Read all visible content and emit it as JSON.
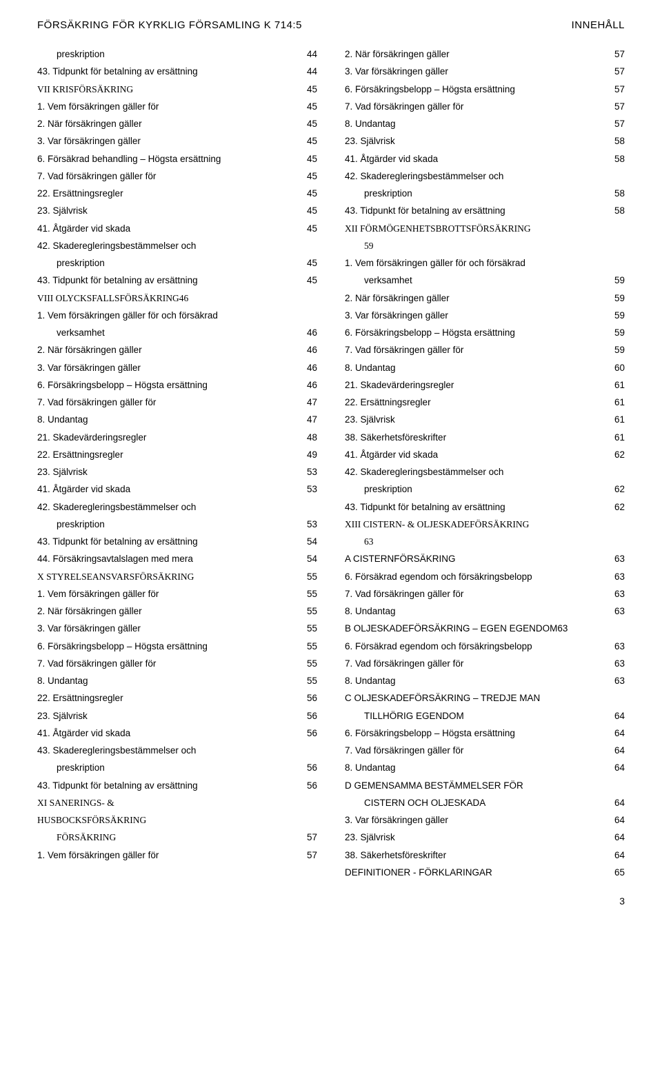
{
  "header": {
    "left": "FÖRSÄKRING FÖR KYRKLIG FÖRSAMLING K 714:5",
    "right": "INNEHÅLL"
  },
  "footer_page": "3",
  "left_col": [
    {
      "indent": true,
      "text": "preskription",
      "page": "44"
    },
    {
      "text": "43.  Tidpunkt för betalning av ersättning",
      "page": "44"
    },
    {
      "section": true,
      "text": "VII  KRISFÖRSÄKRING",
      "page": "45"
    },
    {
      "text": "1.  Vem försäkringen gäller för",
      "page": "45"
    },
    {
      "text": "2.  När försäkringen gäller",
      "page": "45"
    },
    {
      "text": "3.  Var försäkringen gäller",
      "page": "45"
    },
    {
      "text": "6.  Försäkrad behandling – Högsta ersättning",
      "page": "45"
    },
    {
      "text": "7.  Vad försäkringen gäller för",
      "page": "45"
    },
    {
      "text": "22.  Ersättningsregler",
      "page": "45"
    },
    {
      "text": "23.  Självrisk",
      "page": "45"
    },
    {
      "text": "41.  Åtgärder vid skada",
      "page": "45"
    },
    {
      "text": "42.  Skaderegleringsbestämmelser och",
      "page": ""
    },
    {
      "indent": true,
      "text": "preskription",
      "page": "45"
    },
    {
      "text": "43.  Tidpunkt för betalning av ersättning",
      "page": "45"
    },
    {
      "section": true,
      "text": "VIII            OLYCKSFALLSFÖRSÄKRING46",
      "page": ""
    },
    {
      "text": "1.  Vem försäkringen gäller för och försäkrad",
      "page": ""
    },
    {
      "indent": true,
      "text": "verksamhet",
      "page": "46"
    },
    {
      "text": "2.  När försäkringen gäller",
      "page": "46"
    },
    {
      "text": "3.  Var försäkringen gäller",
      "page": "46"
    },
    {
      "text": "6.  Försäkringsbelopp – Högsta ersättning",
      "page": "46"
    },
    {
      "text": "7.  Vad försäkringen gäller för",
      "page": "47"
    },
    {
      "text": "8.  Undantag",
      "page": "47"
    },
    {
      "text": "21.  Skadevärderingsregler",
      "page": "48"
    },
    {
      "text": "22.  Ersättningsregler",
      "page": "49"
    },
    {
      "text": "23.  Självrisk",
      "page": "53"
    },
    {
      "text": "41.  Åtgärder vid skada",
      "page": "53"
    },
    {
      "text": "42.  Skaderegleringsbestämmelser och",
      "page": ""
    },
    {
      "indent": true,
      "text": "preskription",
      "page": "53"
    },
    {
      "text": "43.  Tidpunkt för betalning av ersättning",
      "page": "54"
    },
    {
      "text": "44.  Försäkringsavtalslagen med mera",
      "page": "54"
    },
    {
      "section": true,
      "text": "X   STYRELSEANSVARSFÖRSÄKRING",
      "page": "55"
    },
    {
      "text": "1.  Vem försäkringen gäller för",
      "page": "55"
    },
    {
      "text": "2.  När försäkringen gäller",
      "page": "55"
    },
    {
      "text": "3.  Var försäkringen gäller",
      "page": "55"
    },
    {
      "text": "6.  Försäkringsbelopp – Högsta ersättning",
      "page": "55"
    },
    {
      "text": "7.  Vad försäkringen gäller för",
      "page": "55"
    },
    {
      "text": "8.  Undantag",
      "page": "55"
    },
    {
      "text": "22.  Ersättningsregler",
      "page": "56"
    },
    {
      "text": "23.  Självrisk",
      "page": "56"
    },
    {
      "text": "41.  Åtgärder vid skada",
      "page": "56"
    },
    {
      "text": "43.  Skaderegleringsbestämmelser och",
      "page": ""
    },
    {
      "indent": true,
      "text": "preskription",
      "page": "56"
    },
    {
      "text": "43.  Tidpunkt för betalning av ersättning",
      "page": "56"
    },
    {
      "section": true,
      "text": "XI   SANERINGS- &",
      "page": ""
    },
    {
      "section": true,
      "text": "HUSBOCKSFÖRSÄKRING",
      "page": ""
    },
    {
      "section": true,
      "indent": true,
      "text": "FÖRSÄKRING",
      "page": "57"
    },
    {
      "text": "1.  Vem försäkringen gäller för",
      "page": "57"
    }
  ],
  "right_col": [
    {
      "text": "2.  När försäkringen gäller",
      "page": "57"
    },
    {
      "text": "3.  Var försäkringen gäller",
      "page": "57"
    },
    {
      "text": "6.  Försäkringsbelopp – Högsta ersättning",
      "page": "57"
    },
    {
      "text": "7.  Vad försäkringen gäller för",
      "page": "57"
    },
    {
      "text": "8.  Undantag",
      "page": "57"
    },
    {
      "text": "23.  Självrisk",
      "page": "58"
    },
    {
      "text": "41.  Åtgärder vid skada",
      "page": "58"
    },
    {
      "text": "42.  Skaderegleringsbestämmelser och",
      "page": ""
    },
    {
      "indent": true,
      "text": "preskription",
      "page": "58"
    },
    {
      "text": "43.  Tidpunkt för betalning av ersättning",
      "page": "58"
    },
    {
      "section": true,
      "text": "XII  FÖRMÖGENHETSBROTTSFÖRSÄKRING",
      "page": ""
    },
    {
      "section": true,
      "indent": true,
      "text": "59",
      "page": ""
    },
    {
      "text": "1.  Vem försäkringen gäller för och försäkrad",
      "page": ""
    },
    {
      "indent": true,
      "text": "verksamhet",
      "page": "59"
    },
    {
      "text": "2.  När försäkringen gäller",
      "page": "59"
    },
    {
      "text": "3.  Var försäkringen gäller",
      "page": "59"
    },
    {
      "text": "6.  Försäkringsbelopp – Högsta ersättning",
      "page": "59"
    },
    {
      "text": "7.  Vad försäkringen gäller för",
      "page": "59"
    },
    {
      "text": "8.  Undantag",
      "page": "60"
    },
    {
      "text": "21.  Skadevärderingsregler",
      "page": "61"
    },
    {
      "text": "22.  Ersättningsregler",
      "page": "61"
    },
    {
      "text": "23.  Självrisk",
      "page": "61"
    },
    {
      "text": "38.  Säkerhetsföreskrifter",
      "page": "61"
    },
    {
      "text": "41.  Åtgärder vid skada",
      "page": "62"
    },
    {
      "text": "42.  Skaderegleringsbestämmelser och",
      "page": ""
    },
    {
      "indent": true,
      "text": "preskription",
      "page": "62"
    },
    {
      "text": "43.  Tidpunkt för betalning av ersättning",
      "page": "62"
    },
    {
      "section": true,
      "text": "XIII  CISTERN- & OLJESKADEFÖRSÄKRING",
      "page": ""
    },
    {
      "section": true,
      "indent": true,
      "text": "      63",
      "page": ""
    },
    {
      "text": "A    CISTERNFÖRSÄKRING",
      "page": "63"
    },
    {
      "text": "6.  Försäkrad egendom och försäkringsbelopp",
      "page": "63"
    },
    {
      "text": "7.  Vad försäkringen gäller för",
      "page": "63"
    },
    {
      "text": "8.  Undantag",
      "page": "63"
    },
    {
      "text": "B    OLJESKADEFÖRSÄKRING – EGEN EGENDOM63",
      "page": ""
    },
    {
      "text": "6.  Försäkrad egendom och försäkringsbelopp",
      "page": "63"
    },
    {
      "text": "7.  Vad försäkringen gäller för",
      "page": "63"
    },
    {
      "text": "8.  Undantag",
      "page": "63"
    },
    {
      "text": "C    OLJESKADEFÖRSÄKRING – TREDJE MAN",
      "page": ""
    },
    {
      "indent": true,
      "text": "TILLHÖRIG EGENDOM",
      "page": "64"
    },
    {
      "text": "6.  Försäkringsbelopp – Högsta ersättning",
      "page": "64"
    },
    {
      "text": "7.  Vad försäkringen gäller för",
      "page": "64"
    },
    {
      "text": "8.  Undantag",
      "page": "64"
    },
    {
      "text": "D    GEMENSAMMA BESTÄMMELSER FÖR",
      "page": ""
    },
    {
      "indent": true,
      "text": "CISTERN OCH OLJESKADA",
      "page": "64"
    },
    {
      "text": "3.  Var försäkringen gäller",
      "page": "64"
    },
    {
      "text": "23.  Självrisk",
      "page": "64"
    },
    {
      "text": "38.  Säkerhetsföreskrifter",
      "page": "64"
    },
    {
      "text": "DEFINITIONER - FÖRKLARINGAR",
      "page": "65"
    }
  ]
}
